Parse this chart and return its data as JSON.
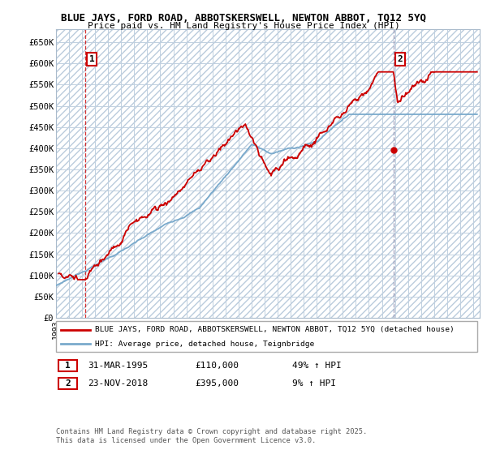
{
  "title1": "BLUE JAYS, FORD ROAD, ABBOTSKERSWELL, NEWTON ABBOT, TQ12 5YQ",
  "title2": "Price paid vs. HM Land Registry's House Price Index (HPI)",
  "ylim": [
    0,
    680000
  ],
  "yticks": [
    0,
    50000,
    100000,
    150000,
    200000,
    250000,
    300000,
    350000,
    400000,
    450000,
    500000,
    550000,
    600000,
    650000
  ],
  "ytick_labels": [
    "£0",
    "£50K",
    "£100K",
    "£150K",
    "£200K",
    "£250K",
    "£300K",
    "£350K",
    "£400K",
    "£450K",
    "£500K",
    "£550K",
    "£600K",
    "£650K"
  ],
  "xlim_start": 1993.0,
  "xlim_end": 2025.5,
  "background_color": "#ffffff",
  "grid_color": "#c8d8e8",
  "red_line_color": "#cc0000",
  "blue_line_color": "#7aaacc",
  "marker1_date": 1995.25,
  "marker1_value": 110000,
  "marker1_label": "1",
  "marker1_date_str": "31-MAR-1995",
  "marker1_price_str": "£110,000",
  "marker1_hpi_str": "49% ↑ HPI",
  "marker2_date": 2018.9,
  "marker2_value": 395000,
  "marker2_label": "2",
  "marker2_date_str": "23-NOV-2018",
  "marker2_price_str": "£395,000",
  "marker2_hpi_str": "9% ↑ HPI",
  "legend_line1": "BLUE JAYS, FORD ROAD, ABBOTSKERSWELL, NEWTON ABBOT, TQ12 5YQ (detached house)",
  "legend_line2": "HPI: Average price, detached house, Teignbridge",
  "footer": "Contains HM Land Registry data © Crown copyright and database right 2025.\nThis data is licensed under the Open Government Licence v3.0."
}
